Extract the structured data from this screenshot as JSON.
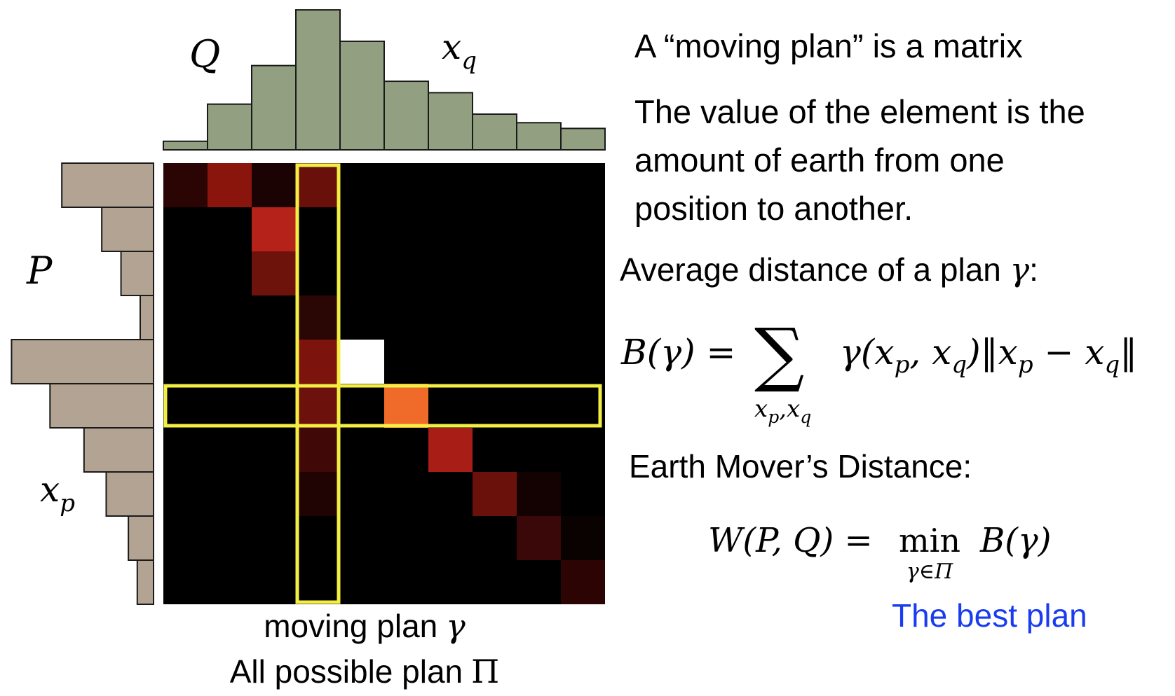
{
  "diagram": {
    "q_label": "Q",
    "xq_label": "x",
    "xq_sub": "q",
    "p_label": "P",
    "xp_label": "x",
    "xp_sub": "p",
    "q_histogram": [
      0.06,
      0.32,
      0.59,
      0.98,
      0.76,
      0.48,
      0.4,
      0.25,
      0.19,
      0.15
    ],
    "p_histogram": [
      0.62,
      0.35,
      0.22,
      0.09,
      0.96,
      0.7,
      0.47,
      0.32,
      0.17,
      0.11
    ],
    "matrix": [
      [
        "#2a0504",
        "#8a150d",
        "#1c0303",
        "#6a100a",
        "#000000",
        "#000000",
        "#000000",
        "#000000",
        "#000000",
        "#000000"
      ],
      [
        "#000000",
        "#000000",
        "#b5221a",
        "#000000",
        "#000000",
        "#000000",
        "#000000",
        "#000000",
        "#000000",
        "#000000"
      ],
      [
        "#000000",
        "#000000",
        "#6e120c",
        "#000000",
        "#000000",
        "#000000",
        "#000000",
        "#000000",
        "#000000",
        "#000000"
      ],
      [
        "#000000",
        "#000000",
        "#000000",
        "#2a0605",
        "#000000",
        "#000000",
        "#000000",
        "#000000",
        "#000000",
        "#000000"
      ],
      [
        "#000000",
        "#000000",
        "#000000",
        "#7c140d",
        "#ffffff",
        "#000000",
        "#000000",
        "#000000",
        "#000000",
        "#000000"
      ],
      [
        "#000000",
        "#000000",
        "#000000",
        "#6c110b",
        "#000000",
        "#f06a2a",
        "#000000",
        "#000000",
        "#000000",
        "#000000"
      ],
      [
        "#000000",
        "#000000",
        "#000000",
        "#400807",
        "#000000",
        "#000000",
        "#a81e16",
        "#000000",
        "#000000",
        "#000000"
      ],
      [
        "#000000",
        "#000000",
        "#000000",
        "#200404",
        "#000000",
        "#000000",
        "#000000",
        "#6a110b",
        "#140202",
        "#000000"
      ],
      [
        "#000000",
        "#000000",
        "#000000",
        "#000000",
        "#000000",
        "#000000",
        "#000000",
        "#000000",
        "#3a0808",
        "#0a0101"
      ],
      [
        "#000000",
        "#000000",
        "#000000",
        "#000000",
        "#000000",
        "#000000",
        "#000000",
        "#000000",
        "#000000",
        "#2c0404"
      ]
    ],
    "highlight_column": 3,
    "highlight_row": 5,
    "caption_line1": "moving plan",
    "caption_gamma": "γ",
    "caption_line2": "All possible plan",
    "caption_pi": "Π",
    "colors": {
      "q_bar": "#929f80",
      "p_bar": "#b2a393",
      "highlight": "#f3ee44",
      "best_plan": "#1a3cf0"
    }
  },
  "text": {
    "title": "A “moving plan” is a matrix",
    "body_lines": [
      "The value of the element is the",
      "amount of earth from one",
      "position to another."
    ],
    "avg_label": "Average distance of a plan",
    "avg_gamma": "γ",
    "avg_colon": ":",
    "emd_label": "Earth Mover’s Distance:",
    "best_plan": "The best plan"
  },
  "formula_b": {
    "lhs": "B(γ) =",
    "sigma": "∑",
    "sub_x1": "x",
    "sub_p": "p",
    "sub_comma": ",",
    "sub_x2": "x",
    "sub_q": "q",
    "term_open": "γ(x",
    "term_p": "p",
    "term_comma": ", x",
    "term_q": "q",
    "term_close": ")",
    "norm_open": "‖x",
    "norm_p": "p",
    "norm_minus": " − x",
    "norm_q": "q",
    "norm_close": "‖"
  },
  "formula_w": {
    "lhs": "W(P, Q) =",
    "min": "min",
    "min_sub": "γ∈Π",
    "rhs": "B(γ)"
  }
}
